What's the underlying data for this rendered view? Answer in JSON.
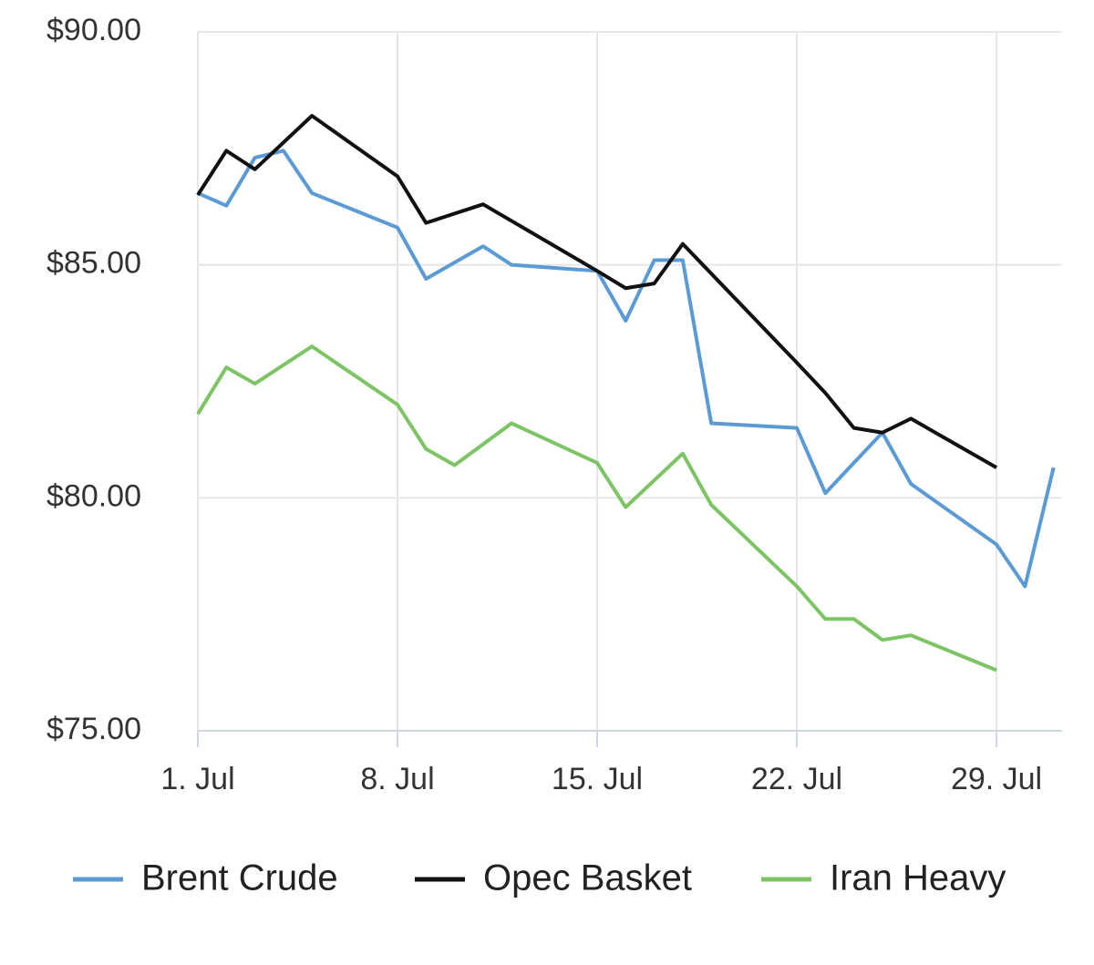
{
  "chart_data": {
    "type": "line",
    "xlim": [
      1,
      31.3
    ],
    "ylim": [
      75,
      90
    ],
    "xticks": [
      {
        "value": 1,
        "label": "1. Jul"
      },
      {
        "value": 8,
        "label": "8. Jul"
      },
      {
        "value": 15,
        "label": "15. Jul"
      },
      {
        "value": 22,
        "label": "22. Jul"
      },
      {
        "value": 29,
        "label": "29. Jul"
      }
    ],
    "yticks": [
      {
        "value": 75,
        "label": "$75.00"
      },
      {
        "value": 80,
        "label": "$80.00"
      },
      {
        "value": 85,
        "label": "$85.00"
      },
      {
        "value": 90,
        "label": "$90.00"
      }
    ],
    "grid": true,
    "legend": "bottom",
    "series": [
      {
        "name": "Brent Crude",
        "color": "#5b9bd5",
        "x": [
          1,
          2,
          3,
          4,
          5,
          8,
          9,
          11,
          12,
          15,
          16,
          17,
          18,
          19,
          22,
          23,
          25,
          26,
          29,
          30,
          31
        ],
        "values": [
          86.54,
          86.27,
          87.3,
          87.45,
          86.54,
          85.8,
          84.7,
          85.4,
          85.0,
          84.87,
          83.8,
          85.1,
          85.1,
          81.6,
          81.5,
          80.1,
          81.4,
          80.3,
          79.0,
          78.1,
          80.65
        ]
      },
      {
        "name": "Opec Basket",
        "color": "#111111",
        "x": [
          1,
          2,
          3,
          5,
          8,
          9,
          11,
          15,
          16,
          17,
          18,
          22,
          23,
          24,
          25,
          26,
          29
        ],
        "values": [
          86.5,
          87.45,
          87.05,
          88.2,
          86.9,
          85.9,
          86.3,
          84.87,
          84.5,
          84.6,
          85.45,
          82.9,
          82.25,
          81.5,
          81.4,
          81.7,
          80.65
        ]
      },
      {
        "name": "Iran Heavy",
        "color": "#7cc464",
        "x": [
          1,
          2,
          3,
          5,
          8,
          9,
          10,
          12,
          15,
          16,
          18,
          19,
          22,
          23,
          24,
          25,
          26,
          29
        ],
        "values": [
          81.8,
          82.8,
          82.45,
          83.25,
          82.0,
          81.05,
          80.7,
          81.6,
          80.75,
          79.8,
          80.95,
          79.85,
          78.1,
          77.4,
          77.4,
          76.95,
          77.05,
          76.3
        ]
      }
    ]
  }
}
